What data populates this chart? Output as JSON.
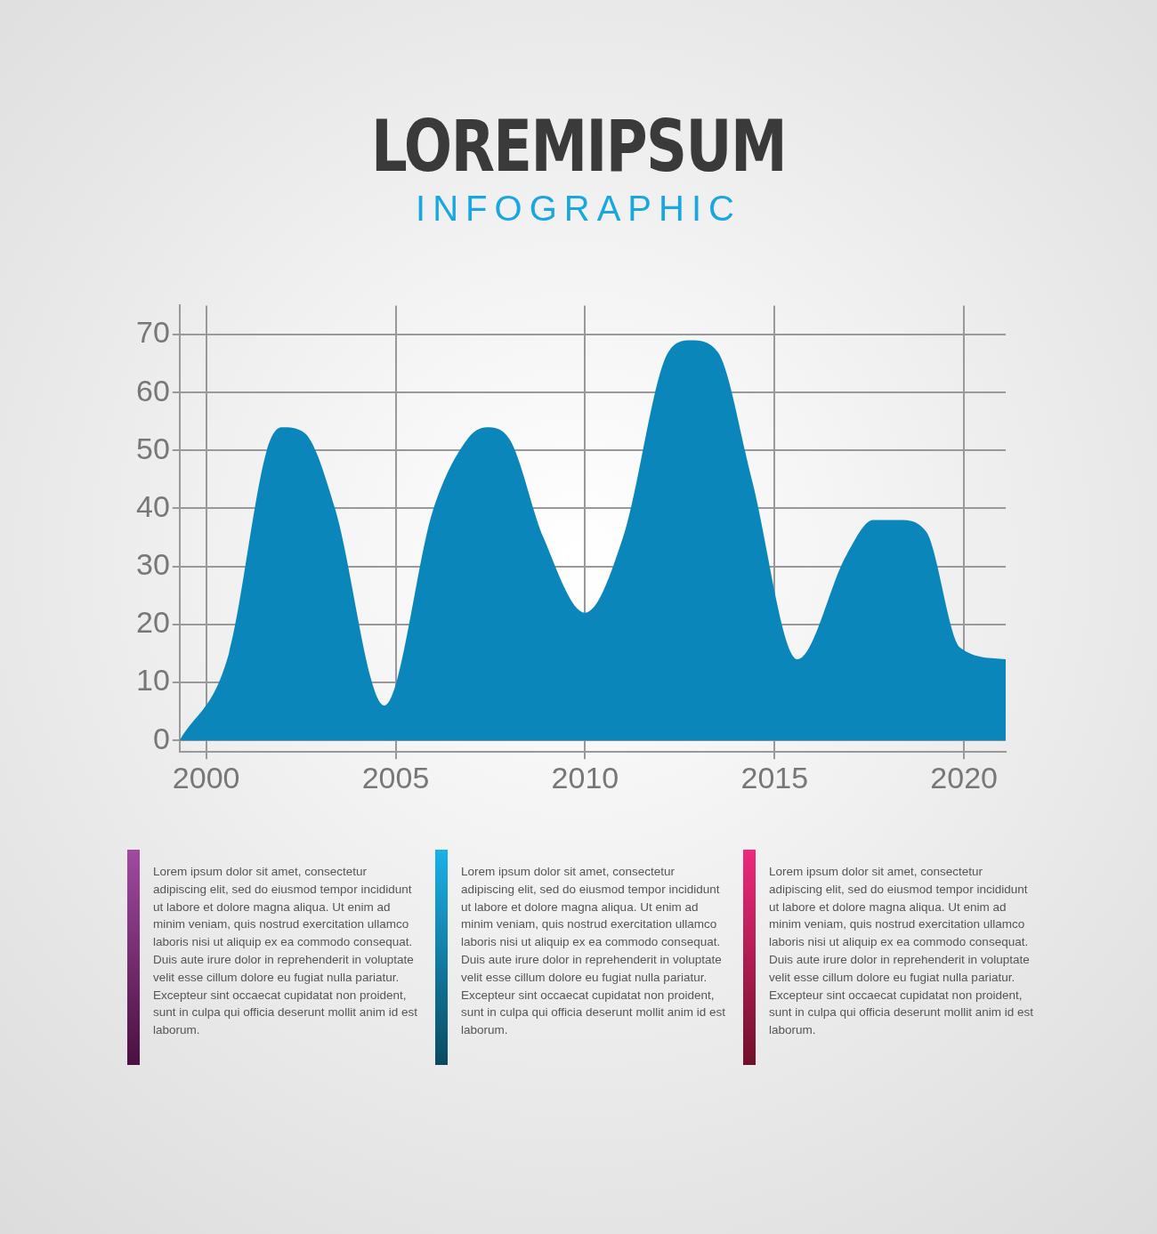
{
  "chart_data": {
    "type": "area",
    "title": "LOREMIPSUM",
    "subtitle": "INFOGRAPHIC",
    "x": [
      1999.3,
      2000.6,
      2001.6,
      2002.0,
      2002.6,
      2003.4,
      2004.7,
      2006.0,
      2006.9,
      2007.4,
      2008.0,
      2008.9,
      2010.0,
      2011.0,
      2012.2,
      2012.8,
      2013.5,
      2014.4,
      2015.6,
      2016.9,
      2017.6,
      2018.3,
      2019.0,
      2019.9,
      2021.1
    ],
    "values": [
      0,
      15,
      50,
      54,
      53,
      40,
      6,
      40,
      52,
      54,
      52,
      35,
      22,
      35,
      67,
      69,
      67,
      45,
      14,
      32,
      38,
      38,
      36,
      16,
      14
    ],
    "color": "#0a86bb",
    "xlim": [
      1999.3,
      2021.1
    ],
    "xticks": [
      2000,
      2005,
      2010,
      2015,
      2020
    ],
    "ylim": [
      -2,
      75
    ],
    "yticks": [
      0,
      10,
      20,
      30,
      40,
      50,
      60,
      70
    ],
    "grid": true,
    "legend": false,
    "annotations": [
      "Lorem ipsum dolor sit amet, consectetur adipiscing elit, sed do eiusmod tempor incididunt ut labore et dolore magna aliqua. Ut enim ad minim veniam, quis nostrud exercitation ullamco laboris nisi ut aliquip ex ea commodo consequat. Duis aute irure dolor in reprehenderit in voluptate velit esse cillum dolore eu fugiat nulla pariatur. Excepteur sint occaecat cupidatat non proident, sunt in culpa qui officia deserunt mollit anim id est laborum.",
      "Lorem ipsum dolor sit amet, consectetur adipiscing elit, sed do eiusmod tempor incididunt ut labore et dolore magna aliqua. Ut enim ad minim veniam, quis nostrud exercitation ullamco laboris nisi ut aliquip ex ea commodo consequat. Duis aute irure dolor in reprehenderit in voluptate velit esse cillum dolore eu fugiat nulla pariatur. Excepteur sint occaecat cupidatat non proident, sunt in culpa qui officia deserunt mollit anim id est laborum.",
      "Lorem ipsum dolor sit amet, consectetur adipiscing elit, sed do eiusmod tempor incididunt ut labore et dolore magna aliqua. Ut enim ad minim veniam, quis nostrud exercitation ullamco laboris nisi ut aliquip ex ea commodo consequat. Duis aute irure dolor in reprehenderit in voluptate velit esse cillum dolore eu fugiat nulla pariatur. Excepteur sint occaecat cupidatat non proident, sunt in culpa qui officia deserunt mollit anim id est laborum."
    ]
  }
}
